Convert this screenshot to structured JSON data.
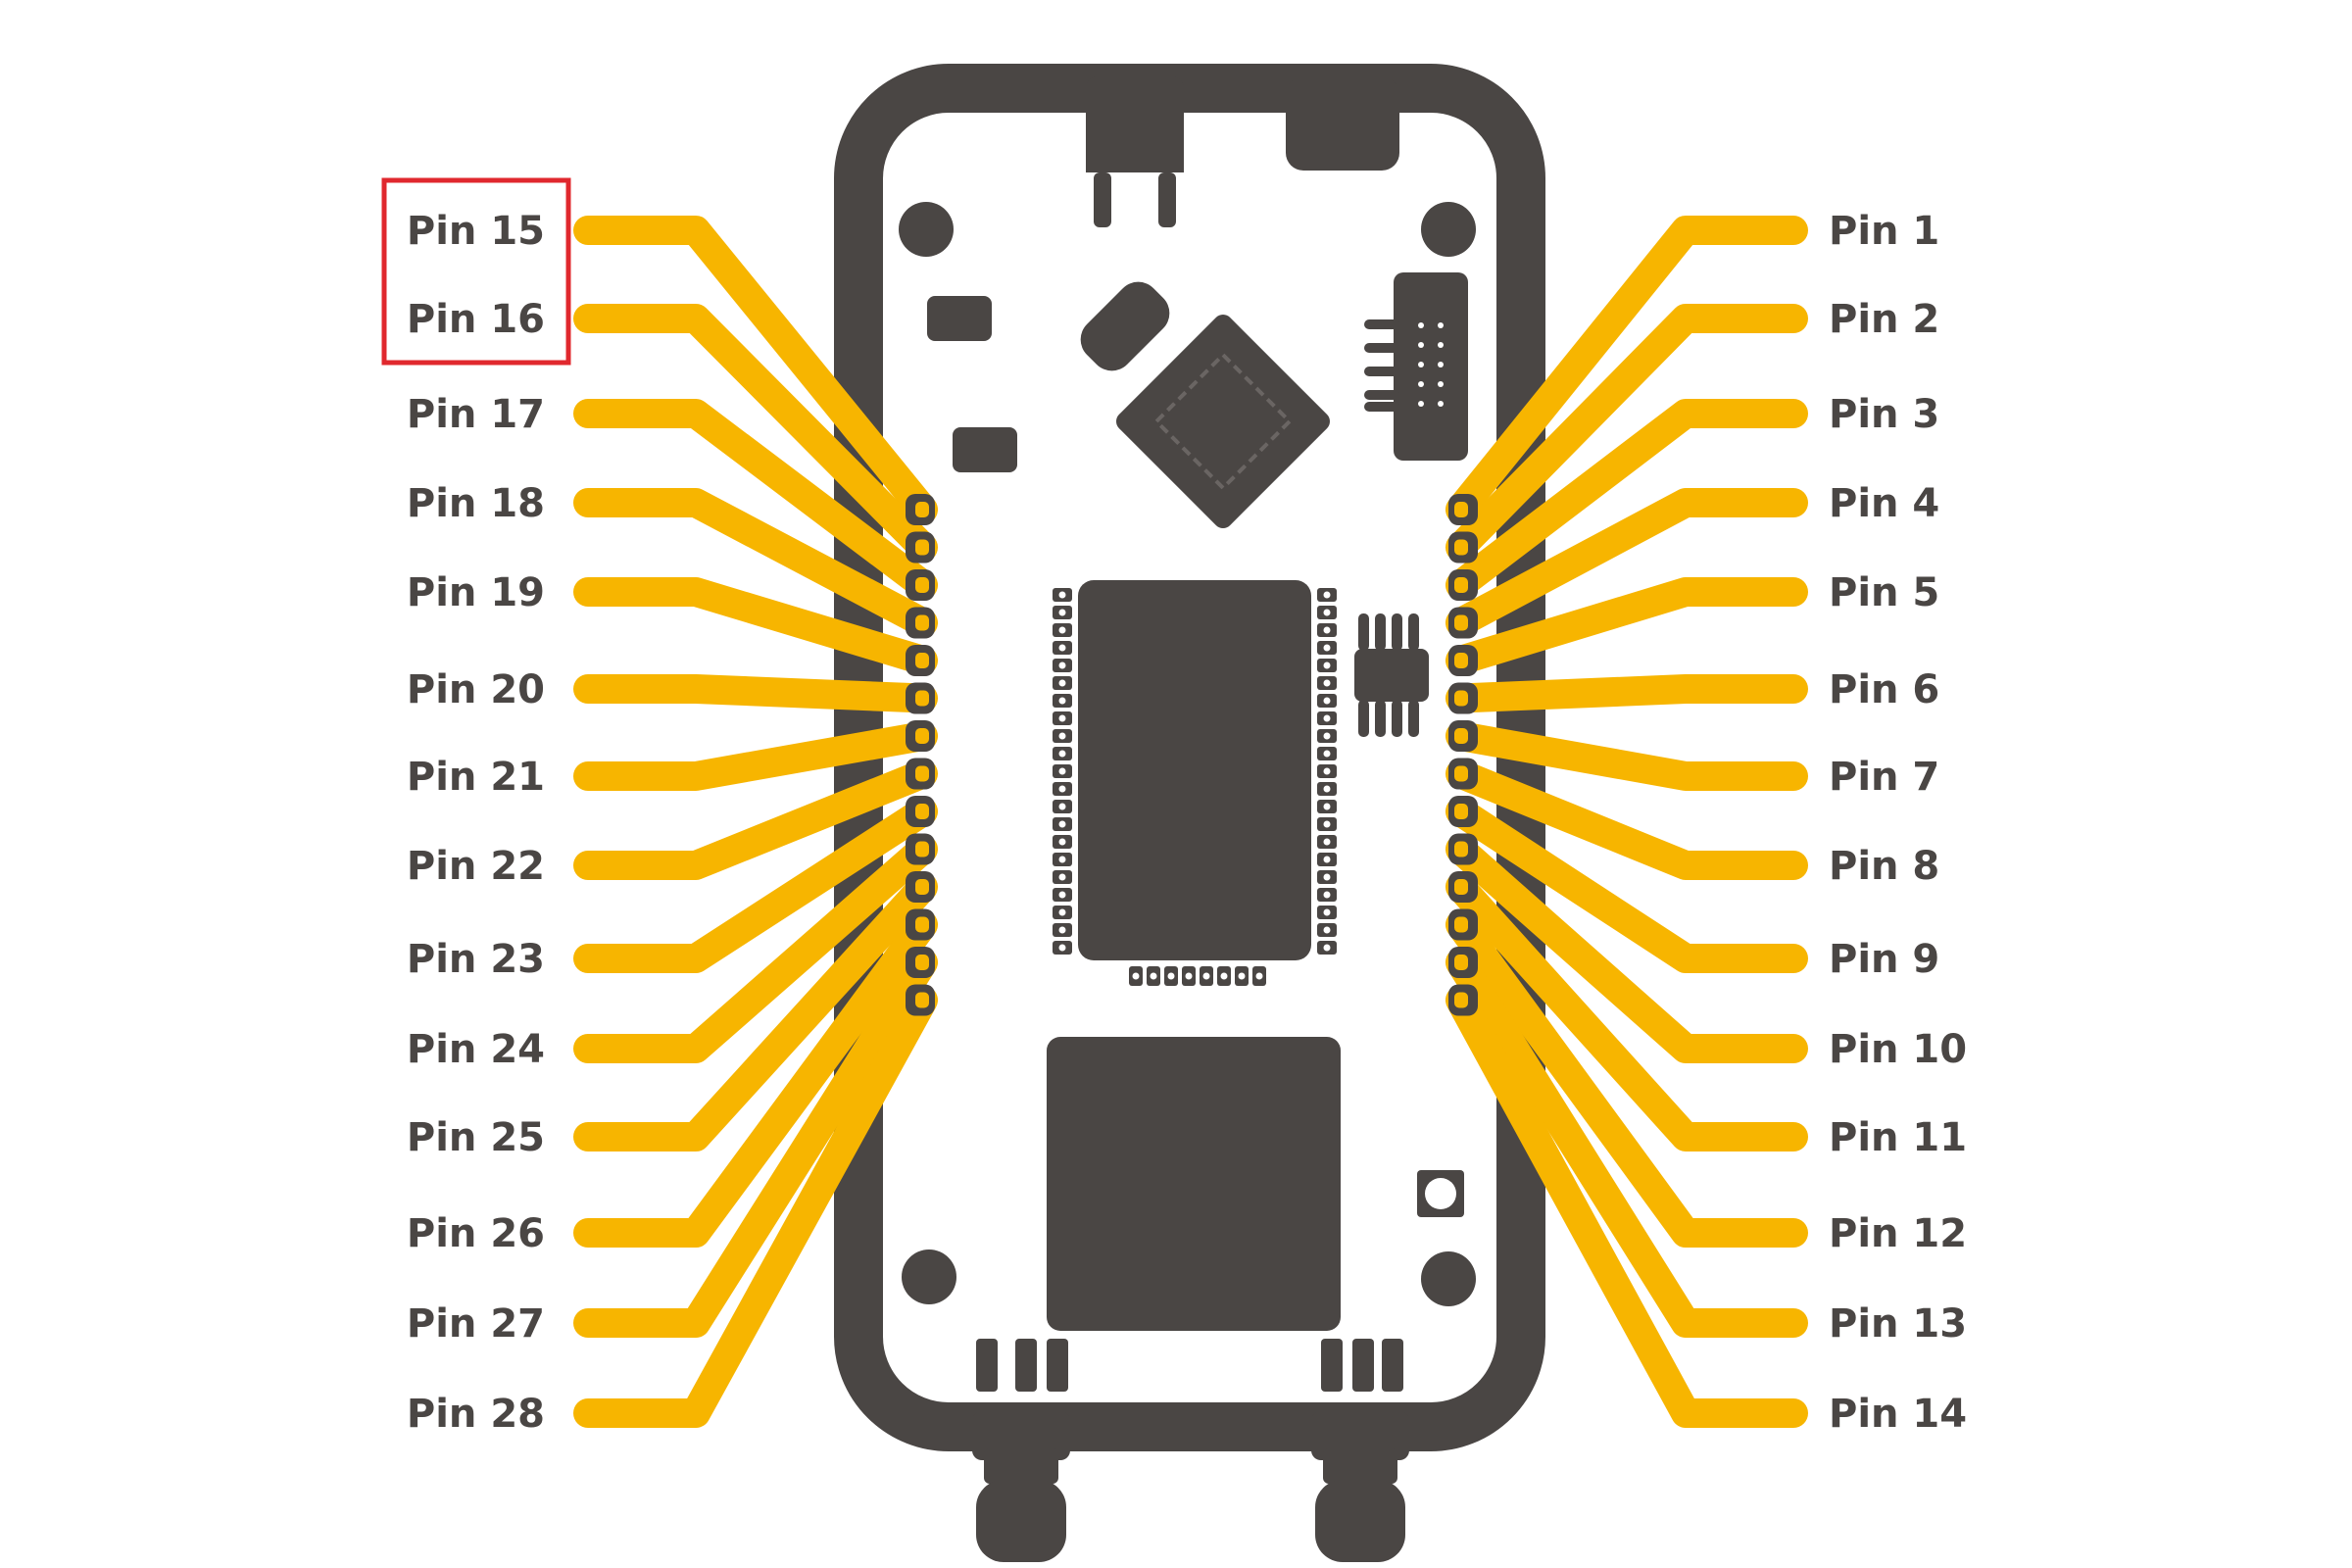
{
  "diagram": {
    "colors": {
      "board": "#4a4644",
      "trace": "#f7b500",
      "background": "#ffffff",
      "highlight": "#e0282e",
      "label": "#4a4644"
    },
    "right_pins": [
      "Pin 1",
      "Pin 2",
      "Pin 3",
      "Pin 4",
      "Pin 5",
      "Pin 6",
      "Pin 7",
      "Pin 8",
      "Pin 9",
      "Pin 10",
      "Pin 11",
      "Pin 12",
      "Pin 13",
      "Pin 14"
    ],
    "left_pins": [
      "Pin 15",
      "Pin 16",
      "Pin 17",
      "Pin 18",
      "Pin 19",
      "Pin 20",
      "Pin 21",
      "Pin 22",
      "Pin 23",
      "Pin 24",
      "Pin 25",
      "Pin 26",
      "Pin 27",
      "Pin 28"
    ],
    "highlighted_pins": [
      "Pin 15",
      "Pin 16"
    ]
  }
}
